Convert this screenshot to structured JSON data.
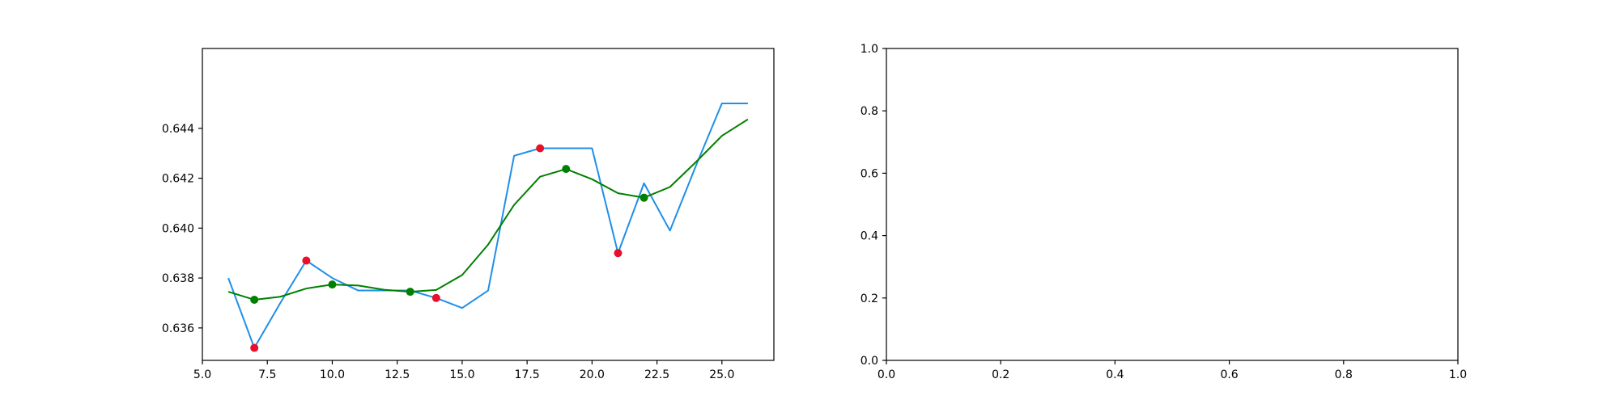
{
  "chart_data": [
    {
      "type": "line",
      "title": "",
      "xlabel": "",
      "ylabel": "",
      "xlim": [
        5.0,
        27.0
      ],
      "ylim": [
        0.6347,
        0.6472
      ],
      "xticks": [
        5.0,
        7.5,
        10.0,
        12.5,
        15.0,
        17.5,
        20.0,
        22.5,
        25.0
      ],
      "xtick_labels": [
        "5.0",
        "7.5",
        "10.0",
        "12.5",
        "15.0",
        "17.5",
        "20.0",
        "22.5",
        "25.0"
      ],
      "yticks": [
        0.636,
        0.638,
        0.64,
        0.642,
        0.644
      ],
      "ytick_labels": [
        "0.636",
        "0.638",
        "0.640",
        "0.642",
        "0.644"
      ],
      "grid": false,
      "legend": null,
      "x": [
        6,
        7,
        8,
        9,
        10,
        11,
        12,
        13,
        14,
        15,
        16,
        17,
        18,
        19,
        20,
        21,
        22,
        23,
        24,
        25,
        26
      ],
      "series": [
        {
          "color": "#1f8fe8",
          "values": [
            0.638,
            0.6352,
            0.637,
            0.6387,
            0.638,
            0.6375,
            0.6375,
            0.6375,
            0.6372,
            0.6368,
            0.6375,
            0.6429,
            0.6432,
            0.6432,
            0.6432,
            0.639,
            0.6418,
            0.6399,
            0.6425,
            0.645,
            0.645
          ]
        },
        {
          "color": "#008000",
          "values": [
            0.63745,
            0.63713,
            0.63725,
            0.63758,
            0.63774,
            0.6377,
            0.63753,
            0.63745,
            0.63752,
            0.63812,
            0.63934,
            0.64093,
            0.64206,
            0.64237,
            0.64196,
            0.6414,
            0.64122,
            0.64165,
            0.64265,
            0.6437,
            0.64436
          ]
        }
      ],
      "scatter": [
        {
          "color": "#e8102a",
          "points": [
            [
              7,
              0.6352
            ],
            [
              9,
              0.6387
            ],
            [
              14,
              0.6372
            ],
            [
              18,
              0.6432
            ],
            [
              21,
              0.639
            ]
          ]
        },
        {
          "color": "#008000",
          "points": [
            [
              7,
              0.63713
            ],
            [
              10,
              0.63774
            ],
            [
              13,
              0.63745
            ],
            [
              19,
              0.64237
            ],
            [
              22,
              0.64122
            ]
          ]
        }
      ]
    },
    {
      "type": "line",
      "title": "",
      "xlabel": "",
      "ylabel": "",
      "xlim": [
        0.0,
        1.0
      ],
      "ylim": [
        0.0,
        1.0
      ],
      "xticks": [
        0.0,
        0.2,
        0.4,
        0.6,
        0.8,
        1.0
      ],
      "xtick_labels": [
        "0.0",
        "0.2",
        "0.4",
        "0.6",
        "0.8",
        "1.0"
      ],
      "yticks": [
        0.0,
        0.2,
        0.4,
        0.6,
        0.8,
        1.0
      ],
      "ytick_labels": [
        "0.0",
        "0.2",
        "0.4",
        "0.6",
        "0.8",
        "1.0"
      ],
      "grid": false,
      "legend": null,
      "series": []
    }
  ]
}
